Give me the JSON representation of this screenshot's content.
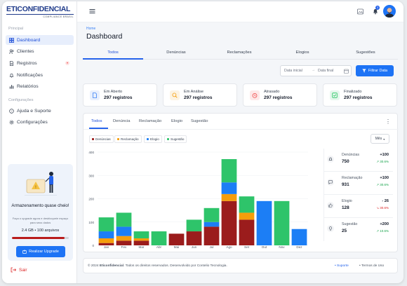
{
  "brand": {
    "name": "ETICONFIDENCIAL",
    "tagline": "COMPLIANCE BRASIL"
  },
  "sidebar": {
    "section_main": "Principal",
    "items": [
      {
        "label": "Dashboard",
        "icon": "dashboard-icon"
      },
      {
        "label": "Clientes",
        "icon": "users-icon"
      },
      {
        "label": "Registros",
        "icon": "file-icon"
      },
      {
        "label": "Notificações",
        "icon": "bell-icon"
      },
      {
        "label": "Relatórios",
        "icon": "bar-chart-icon"
      }
    ],
    "section_config": "Configurações",
    "config_items": [
      {
        "label": "Ajuda e Suporte",
        "icon": "help-icon"
      },
      {
        "label": "Configurações",
        "icon": "gear-icon"
      }
    ],
    "storage": {
      "title": "Armazenamento quase cheio!",
      "desc": "Faça o upgrade agora e desbloqueie espaço para seus dados",
      "usage": "2.4 GB  •  100 arquivos",
      "fill_fraction": 0.93,
      "button": "Realizar Upgrade"
    },
    "logout": "Sair"
  },
  "header": {
    "notification_count": "3",
    "breadcrumb": "Home",
    "title": "Dashboard"
  },
  "tabs": [
    "Todos",
    "Denúncias",
    "Reclamações",
    "Elogios",
    "Sugestões"
  ],
  "filters": {
    "start_placeholder": "Data inicial",
    "end_placeholder": "Data final",
    "button": "Filtrar Data"
  },
  "cards": [
    {
      "label": "Em Aberto",
      "value": "297 registros",
      "icon": "document-icon",
      "color": "#3b82f6",
      "bg": "#e8effd"
    },
    {
      "label": "Em Análise",
      "value": "297 registros",
      "icon": "search-icon",
      "color": "#f59e0b",
      "bg": "#fdf3e2"
    },
    {
      "label": "Atrasado",
      "value": "297 registros",
      "icon": "alarm-icon",
      "color": "#ef4444",
      "bg": "#fde8e8"
    },
    {
      "label": "Finalizado",
      "value": "297 registros",
      "icon": "check-icon",
      "color": "#22c55e",
      "bg": "#e5f7ec"
    }
  ],
  "panel": {
    "tabs": [
      "Todos",
      "Denúncia",
      "Reclamação",
      "Elogio",
      "Sugestão"
    ],
    "period": "Mês"
  },
  "chart_data": {
    "type": "bar",
    "stacked": true,
    "categories": [
      "Jan",
      "Fev",
      "Mar",
      "Abr",
      "Mai",
      "Jun",
      "Jul",
      "Ago",
      "Set",
      "Out",
      "Nov",
      "Dez"
    ],
    "ylim": [
      0,
      400
    ],
    "yticks": [
      0,
      100,
      200,
      300,
      400
    ],
    "series": [
      {
        "name": "Denúncias",
        "color": "#9b1c1c",
        "values": [
          10,
          20,
          20,
          0,
          50,
          60,
          80,
          190,
          110,
          0,
          0,
          0
        ]
      },
      {
        "name": "Reclamação",
        "color": "#f59e0b",
        "values": [
          20,
          20,
          10,
          0,
          0,
          0,
          0,
          30,
          30,
          0,
          0,
          0
        ]
      },
      {
        "name": "Elogio",
        "color": "#1c7ef5",
        "values": [
          30,
          40,
          0,
          0,
          0,
          0,
          20,
          50,
          0,
          190,
          0,
          70
        ]
      },
      {
        "name": "Sugestão",
        "color": "#2ec46a",
        "values": [
          60,
          60,
          30,
          60,
          0,
          50,
          60,
          100,
          70,
          0,
          190,
          0
        ]
      }
    ],
    "legend_position": "top-left",
    "grid": true
  },
  "stats": [
    {
      "label": "Denúncias",
      "value": "750",
      "delta": "+100",
      "pct": "30.6%",
      "trend": "up",
      "icon": "bell-icon"
    },
    {
      "label": "Reclamação",
      "value": "931",
      "delta": "+100",
      "pct": "30.6%",
      "trend": "up",
      "icon": "message-icon"
    },
    {
      "label": "Elogio",
      "value": "128",
      "delta": "- 26",
      "pct": "30.6%",
      "trend": "down",
      "icon": "thumbs-up-icon"
    },
    {
      "label": "Sugestão",
      "value": "25",
      "delta": "+200",
      "pct": "10.6%",
      "trend": "up",
      "icon": "lightbulb-icon"
    }
  ],
  "footer": {
    "prefix": "© 2024 ",
    "brand": "Eticonfidencial",
    "text": ". Todos os direitos reservados. Desenvolvido por Contelio Tecnologia.",
    "support": "Suporte",
    "terms": "Termos de Uso"
  }
}
